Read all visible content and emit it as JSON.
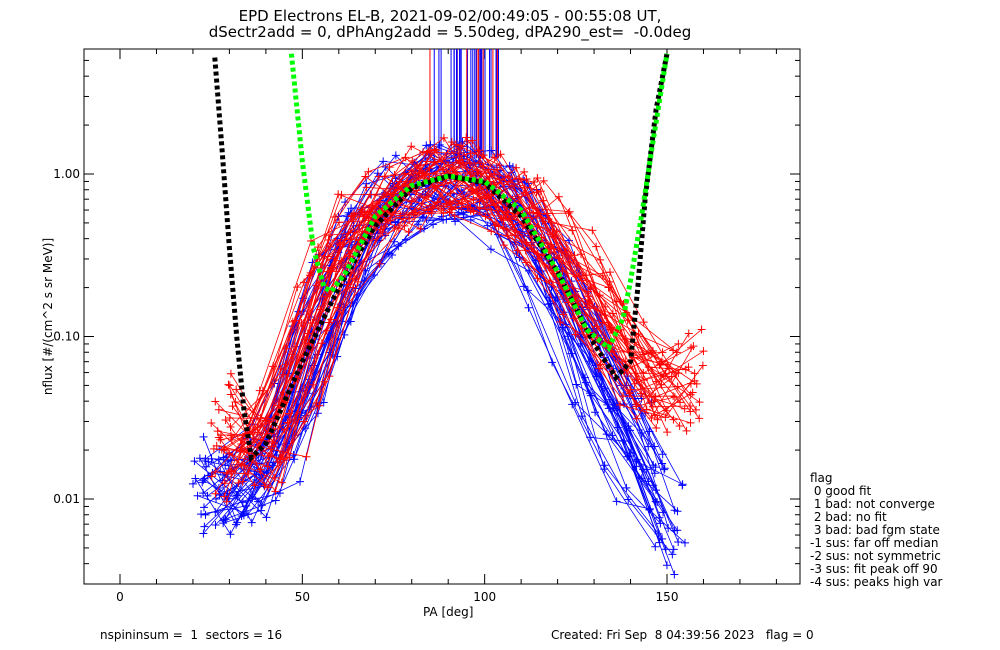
{
  "chart_data": {
    "type": "line",
    "title": "EPD Electrons EL-B, 2021-09-02/00:49:05 - 00:55:08 UT,",
    "subtitle": "dSectr2add = 0, dPhAng2add = 5.50deg, dPA290_est=  -0.0deg",
    "xlabel": "PA [deg]",
    "ylabel": "nflux [#/(cm^2 s sr MeV)]",
    "xlim": [
      -10,
      185
    ],
    "ylim": [
      0.003,
      6
    ],
    "yscale": "log",
    "x_ticks": [
      "0",
      "50",
      "100",
      "150"
    ],
    "y_ticks": [
      "0.01",
      "0.10",
      "1.00"
    ],
    "x_tick_values": [
      0,
      50,
      100,
      150
    ],
    "y_tick_values": [
      0.01,
      0.1,
      1.0
    ],
    "colors": {
      "red": "#ff0000",
      "blue": "#0000ff",
      "black": "#000000",
      "green": "#00ff00"
    },
    "series": [
      {
        "color": "black",
        "style": "dotted",
        "x": [
          26,
          28,
          30,
          32,
          34,
          36,
          40,
          50,
          60,
          70,
          80,
          90,
          100,
          110,
          120,
          130,
          136,
          140,
          142,
          144,
          147,
          150
        ],
        "y": [
          5.2,
          1.4,
          0.35,
          0.1,
          0.035,
          0.018,
          0.022,
          0.07,
          0.2,
          0.48,
          0.82,
          0.97,
          0.88,
          0.55,
          0.25,
          0.09,
          0.056,
          0.07,
          0.2,
          0.7,
          2.5,
          5.5
        ]
      },
      {
        "color": "green",
        "style": "dotted",
        "x": [
          47,
          50,
          53,
          56,
          58,
          62,
          70,
          80,
          90,
          100,
          110,
          120,
          128,
          134,
          138,
          140,
          143,
          146,
          150
        ],
        "y": [
          5.5,
          1.2,
          0.35,
          0.2,
          0.19,
          0.25,
          0.55,
          0.85,
          0.97,
          0.9,
          0.6,
          0.25,
          0.11,
          0.085,
          0.13,
          0.22,
          0.55,
          1.5,
          5.5
        ]
      },
      {
        "color": "red",
        "style": "crosses",
        "x": [
          25,
          30,
          35,
          45,
          55,
          65,
          75,
          85,
          92,
          100,
          110,
          120,
          130,
          140,
          150,
          160
        ],
        "y": [
          0.035,
          0.02,
          0.015,
          0.03,
          0.2,
          0.5,
          0.75,
          0.95,
          1.0,
          0.9,
          0.6,
          0.35,
          0.15,
          0.06,
          0.04,
          0.07
        ]
      },
      {
        "color": "blue",
        "style": "crosses",
        "x": [
          20,
          28,
          35,
          45,
          55,
          65,
          75,
          85,
          92,
          100,
          110,
          120,
          130,
          140,
          150,
          155
        ],
        "y": [
          0.014,
          0.01,
          0.012,
          0.025,
          0.12,
          0.4,
          0.7,
          0.9,
          0.95,
          0.85,
          0.5,
          0.2,
          0.06,
          0.02,
          0.008,
          0.005
        ]
      }
    ]
  },
  "legend": {
    "title": "flag",
    "items": [
      " 0 good fit",
      " 1 bad: not converge",
      " 2 bad: no fit",
      " 3 bad: bad fgm state",
      "-1 sus: far off median",
      "-2 sus: not symmetric",
      "-3 sus: fit peak off 90",
      "-4 sus: peaks high var"
    ]
  },
  "footer": {
    "left": "nspininsum =  1  sectors = 16",
    "right": "Created: Fri Sep  8 04:39:56 2023   flag = 0"
  }
}
